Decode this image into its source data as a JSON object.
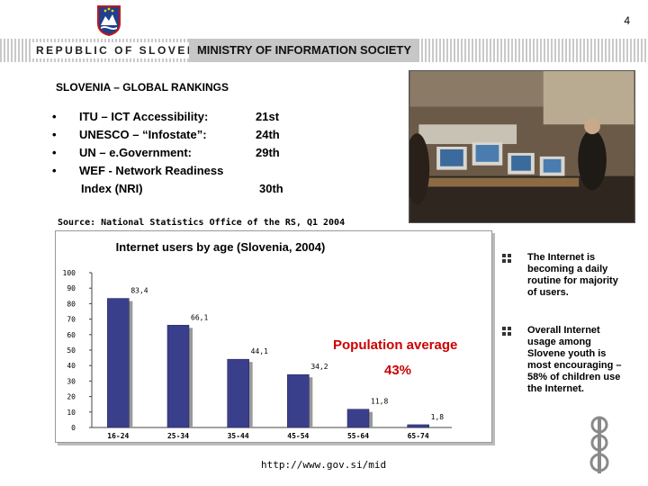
{
  "page": {
    "number": "4"
  },
  "header": {
    "left": "REPUBLIC OF SLOVENIA",
    "right": "MINISTRY OF INFORMATION SOCIETY"
  },
  "rankings": {
    "title": "SLOVENIA – GLOBAL RANKINGS",
    "items": [
      {
        "bullet": "•",
        "label": "ITU –  ICT Accessibility:",
        "value": "21st"
      },
      {
        "bullet": "•",
        "label": "UNESCO – “Infostate”:",
        "value": "24th"
      },
      {
        "bullet": "•",
        "label": "UN – e.Government:",
        "value": "29th"
      },
      {
        "bullet": "•",
        "label": "WEF -  Network Readiness",
        "label2": "Index (NRI)",
        "value": "30th"
      }
    ]
  },
  "source": "Source: National Statistics Office of the RS, Q1 2004",
  "chart_data": {
    "type": "bar",
    "title": "Internet users by age (Slovenia, 2004)",
    "categories": [
      "16-24",
      "25-34",
      "35-44",
      "45-54",
      "55-64",
      "65-74"
    ],
    "values": [
      83.4,
      66.1,
      44.1,
      34.2,
      11.8,
      1.8
    ],
    "value_labels": [
      "83,4",
      "66,1",
      "44,1",
      "34,2",
      "11,8",
      "1,8"
    ],
    "y_ticks": [
      "0",
      "10",
      "20",
      "30",
      "40",
      "50",
      "60",
      "70",
      "80",
      "90",
      "100"
    ],
    "ylim": [
      0,
      100
    ],
    "xlabel": "",
    "ylabel": "",
    "annotation": {
      "label": "Population average",
      "value": "43%"
    },
    "bar_color": "#3a3f8c"
  },
  "notes": [
    {
      "icon": "bullet-square-icon",
      "text": "The Internet is becoming a daily routine for majority of users."
    },
    {
      "icon": "bullet-square-icon",
      "text": "Overall Internet usage among Slovene youth is most encouraging – 58% of children use the Internet."
    }
  ],
  "url": "http://www.gov.si/mid",
  "colors": {
    "accent_red": "#cc0000",
    "header_gray": "#c7c7c7"
  }
}
